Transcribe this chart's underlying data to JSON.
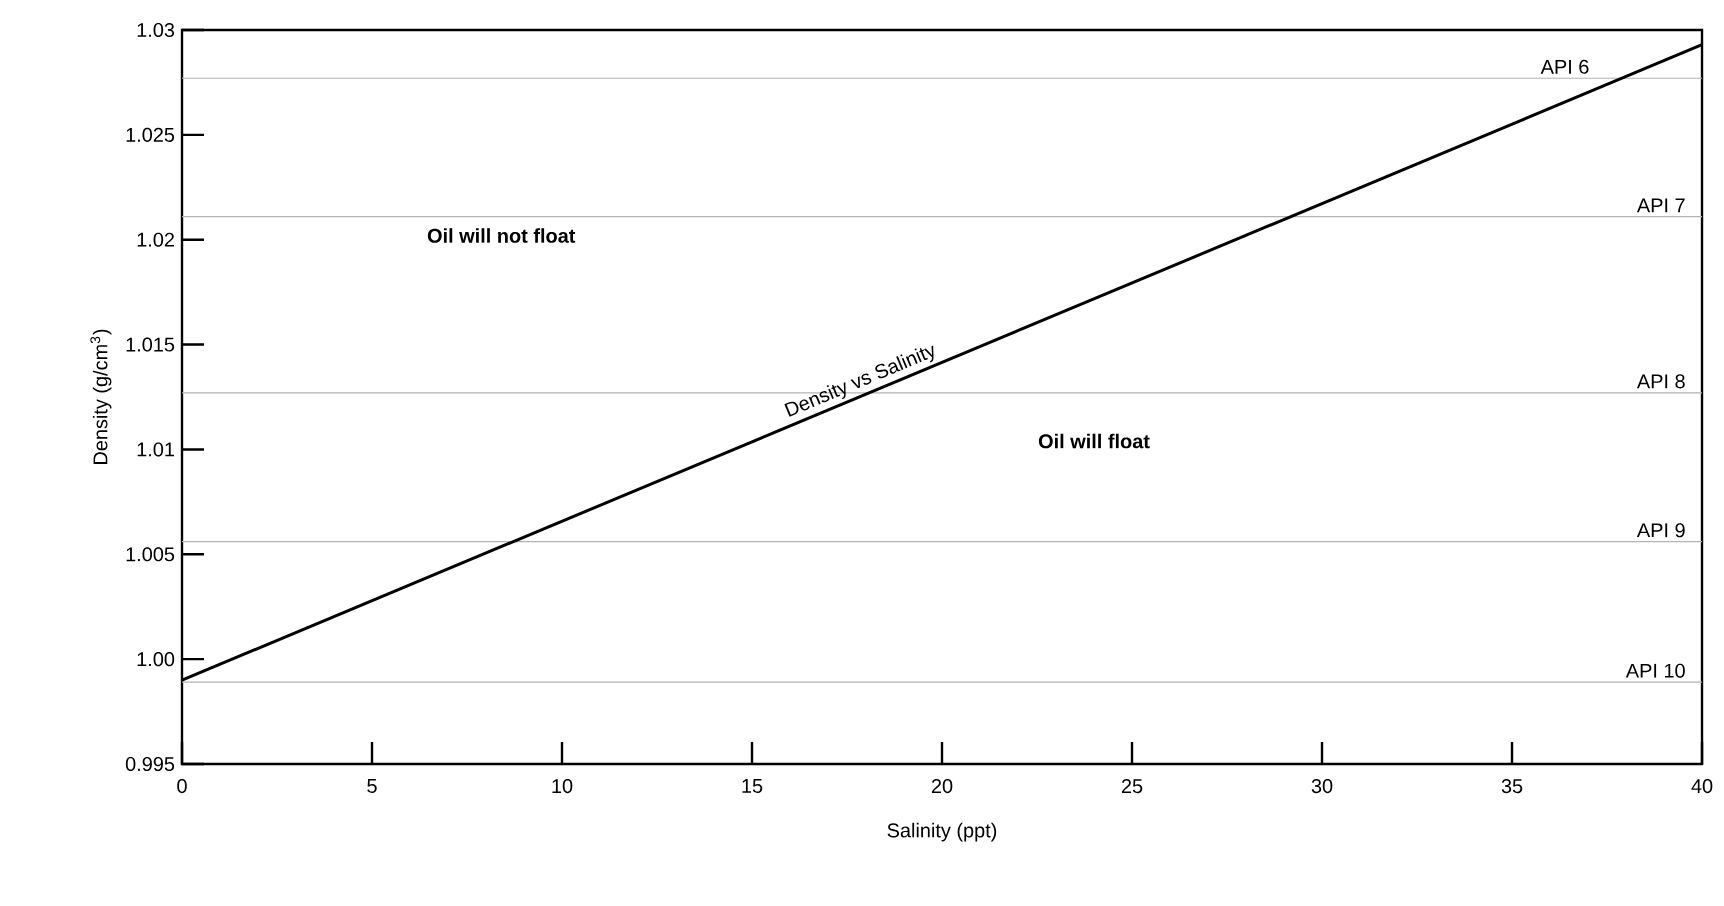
{
  "chart_data": {
    "type": "line",
    "xlabel": "Salinity (ppt)",
    "ylabel": "Density (g/cm$^{3}$)",
    "x": [
      0,
      40
    ],
    "series": [
      {
        "name": "Density vs Salinity",
        "color": "#000000",
        "values": [
          0.999,
          1.0293
        ]
      }
    ],
    "xlim": [
      0,
      40
    ],
    "ylim": [
      0.995,
      1.03
    ],
    "xticks": [
      0,
      5,
      10,
      15,
      20,
      25,
      30,
      35,
      40
    ],
    "yticks": [
      0.995,
      {
        "value": 1.0,
        "label": "1.00"
      },
      1.005,
      1.01,
      1.015,
      1.02,
      1.025,
      1.03
    ],
    "ref_lines": [
      {
        "axis": "y",
        "value": 1.0277,
        "label": "API 6",
        "color": "#b3b3b3"
      },
      {
        "axis": "y",
        "value": 1.0211,
        "label": "API 7",
        "color": "#b3b3b3"
      },
      {
        "axis": "y",
        "value": 1.0127,
        "label": "API 8",
        "color": "#b3b3b3"
      },
      {
        "axis": "y",
        "value": 1.0056,
        "label": "API 9",
        "color": "#b3b3b3"
      },
      {
        "axis": "y",
        "value": 0.9989,
        "label": "API 10",
        "color": "#b3b3b3"
      }
    ],
    "annotations": [
      "**Oil will not float**",
      "**Oil will float**"
    ],
    "grid": false,
    "marker": "none",
    "line_style": "solid"
  }
}
